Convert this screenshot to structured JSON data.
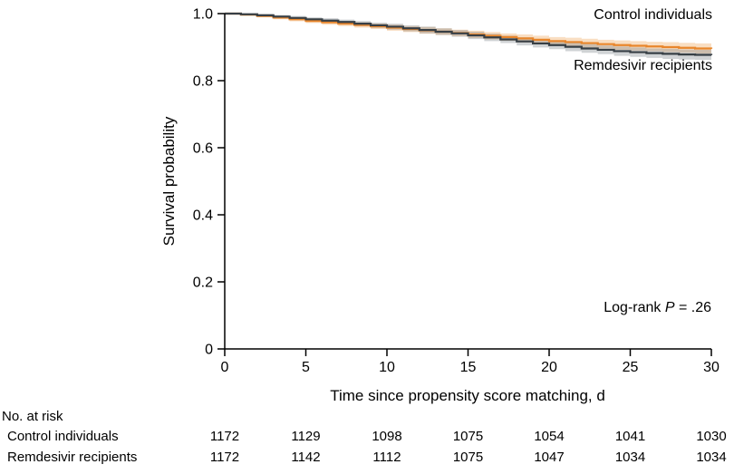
{
  "chart_data": {
    "type": "line",
    "subtype": "kaplan-meier-step",
    "title": "",
    "xlabel": "Time since propensity score matching, d",
    "ylabel": "Survival probability",
    "xlim": [
      0,
      30
    ],
    "ylim": [
      0,
      1.0
    ],
    "x_ticks": [
      0,
      5,
      10,
      15,
      20,
      25,
      30
    ],
    "y_ticks": [
      0,
      0.2,
      0.4,
      0.6,
      0.8,
      1.0
    ],
    "y_tick_labels": [
      "0",
      "0.2",
      "0.4",
      "0.6",
      "0.8",
      "1.0"
    ],
    "grid": false,
    "legend_position": "curve-end-labels",
    "days": [
      0,
      1,
      2,
      3,
      4,
      5,
      6,
      7,
      8,
      9,
      10,
      11,
      12,
      13,
      14,
      15,
      16,
      17,
      18,
      19,
      20,
      21,
      22,
      23,
      24,
      25,
      26,
      27,
      28,
      29,
      30
    ],
    "series": [
      {
        "name": "Control individuals",
        "color": "#E8862C",
        "band_color": "rgba(238,160,80,0.35)",
        "values": [
          1.0,
          0.997,
          0.993,
          0.988,
          0.983,
          0.978,
          0.974,
          0.97,
          0.966,
          0.962,
          0.958,
          0.954,
          0.95,
          0.946,
          0.942,
          0.938,
          0.934,
          0.93,
          0.926,
          0.922,
          0.918,
          0.915,
          0.912,
          0.909,
          0.906,
          0.904,
          0.902,
          0.9,
          0.898,
          0.896,
          0.895
        ],
        "ci_halfwidth": [
          0.001,
          0.003,
          0.004,
          0.005,
          0.006,
          0.006,
          0.007,
          0.007,
          0.008,
          0.008,
          0.009,
          0.009,
          0.01,
          0.01,
          0.01,
          0.011,
          0.011,
          0.011,
          0.012,
          0.012,
          0.012,
          0.013,
          0.013,
          0.013,
          0.014,
          0.014,
          0.014,
          0.015,
          0.015,
          0.015,
          0.016
        ]
      },
      {
        "name": "Remdesivir recipients",
        "color": "#373F45",
        "band_color": "rgba(120,130,136,0.35)",
        "values": [
          1.0,
          0.998,
          0.995,
          0.991,
          0.987,
          0.983,
          0.979,
          0.975,
          0.97,
          0.965,
          0.961,
          0.956,
          0.951,
          0.946,
          0.941,
          0.935,
          0.929,
          0.923,
          0.917,
          0.911,
          0.906,
          0.901,
          0.896,
          0.892,
          0.888,
          0.885,
          0.882,
          0.88,
          0.878,
          0.877,
          0.876
        ],
        "ci_halfwidth": [
          0.001,
          0.003,
          0.004,
          0.005,
          0.006,
          0.006,
          0.007,
          0.007,
          0.008,
          0.008,
          0.009,
          0.009,
          0.01,
          0.01,
          0.01,
          0.011,
          0.011,
          0.011,
          0.012,
          0.012,
          0.012,
          0.013,
          0.013,
          0.013,
          0.014,
          0.014,
          0.014,
          0.015,
          0.015,
          0.015,
          0.016
        ]
      }
    ],
    "annotations": {
      "logrank_prefix": "Log-rank ",
      "logrank_p": "P",
      "logrank_value": " = .26"
    }
  },
  "risk_table": {
    "title": "No. at risk",
    "time_points": [
      0,
      5,
      10,
      15,
      20,
      25,
      30
    ],
    "rows": [
      {
        "label": "Control individuals",
        "counts": [
          1172,
          1129,
          1098,
          1075,
          1054,
          1041,
          1030
        ]
      },
      {
        "label": "Remdesivir recipients",
        "counts": [
          1172,
          1142,
          1112,
          1075,
          1047,
          1034,
          1034
        ]
      }
    ]
  }
}
